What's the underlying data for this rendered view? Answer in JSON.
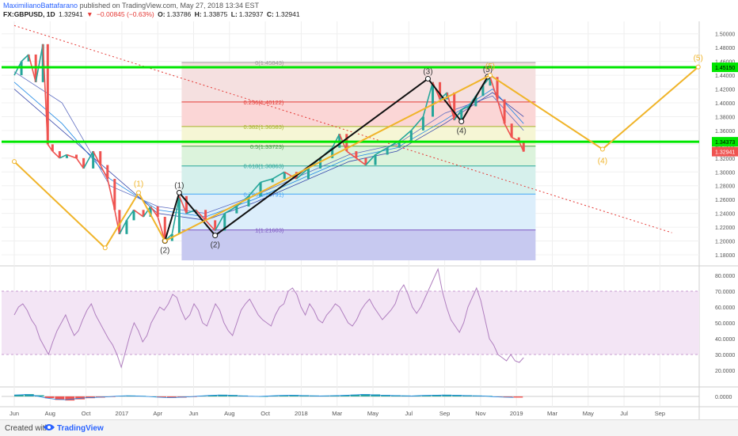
{
  "header": {
    "author": "MaximilianoBattafarano",
    "published": "published on TradingView.com, May 27, 2018 13:34 EST",
    "symbol": "FX:GBPUSD, 1D",
    "last": "1.32941",
    "change_arrow": "▼",
    "change": "−0.00845 (−0.63%)",
    "o_label": "O:",
    "o_val": "1.33786",
    "h_label": "H:",
    "h_val": "1.33875",
    "l_label": "L:",
    "l_val": "1.32937",
    "c_label": "C:",
    "c_val": "1.32941"
  },
  "footer": {
    "created": "Created with",
    "brand": "TradingView"
  },
  "colors": {
    "bull": "#26a69a",
    "bear": "#ef5350",
    "green_level": "#00e600",
    "wave_yellow": "#f0b429",
    "wave_black": "#111111",
    "trend_red": "#e53935",
    "rsi_line": "#b07fbf",
    "rsi_band": "#f3e5f5"
  },
  "chart_data": {
    "type": "line",
    "symbol": "FX:GBPUSD",
    "interval": "1D",
    "x_ticks": [
      "Jun",
      "Aug",
      "Oct",
      "2017",
      "Apr",
      "Jun",
      "Aug",
      "Oct",
      "2018",
      "Mar",
      "May",
      "Jul",
      "Sep",
      "Nov",
      "2019",
      "Mar",
      "May",
      "Jul",
      "Sep"
    ],
    "price_axis": {
      "ylim": [
        1.172,
        1.518
      ],
      "ticks": [
        1.18,
        1.2,
        1.22,
        1.24,
        1.26,
        1.28,
        1.3,
        1.32,
        1.34,
        1.36,
        1.38,
        1.4,
        1.42,
        1.44,
        1.46,
        1.48,
        1.5
      ],
      "tick_labels": [
        "1.18000",
        "1.20000",
        "1.22000",
        "1.24000",
        "1.26000",
        "1.28000",
        "1.30000",
        "1.32000",
        "1.34000",
        "1.36000",
        "1.38000",
        "1.40000",
        "1.42000",
        "1.44000",
        "1.46000",
        "1.48000",
        "1.50000"
      ],
      "badges": [
        {
          "value": 1.4515,
          "label": "1.45150",
          "color": "#00e600"
        },
        {
          "value": 1.3437,
          "label": "1.34373",
          "color": "#00e600"
        },
        {
          "value": 1.3294,
          "label": "1.32941",
          "color": "#ef5350"
        }
      ]
    },
    "price_series": [
      {
        "m": 0,
        "p": 1.44
      },
      {
        "m": 0.3,
        "p": 1.46
      },
      {
        "m": 0.6,
        "p": 1.47
      },
      {
        "m": 0.9,
        "p": 1.43
      },
      {
        "m": 1.2,
        "p": 1.485
      },
      {
        "m": 1.4,
        "p": 1.34
      },
      {
        "m": 1.6,
        "p": 1.33
      },
      {
        "m": 1.9,
        "p": 1.32
      },
      {
        "m": 2.2,
        "p": 1.325
      },
      {
        "m": 2.6,
        "p": 1.32
      },
      {
        "m": 2.9,
        "p": 1.305
      },
      {
        "m": 3.3,
        "p": 1.33
      },
      {
        "m": 3.6,
        "p": 1.31
      },
      {
        "m": 3.9,
        "p": 1.29
      },
      {
        "m": 4.2,
        "p": 1.245
      },
      {
        "m": 4.4,
        "p": 1.21
      },
      {
        "m": 4.7,
        "p": 1.23
      },
      {
        "m": 5.0,
        "p": 1.245
      },
      {
        "m": 5.4,
        "p": 1.235
      },
      {
        "m": 5.7,
        "p": 1.25
      },
      {
        "m": 6.0,
        "p": 1.235
      },
      {
        "m": 6.3,
        "p": 1.2
      },
      {
        "m": 6.6,
        "p": 1.21
      },
      {
        "m": 6.9,
        "p": 1.265
      },
      {
        "m": 7.2,
        "p": 1.24
      },
      {
        "m": 7.6,
        "p": 1.245
      },
      {
        "m": 8.0,
        "p": 1.23
      },
      {
        "m": 8.4,
        "p": 1.215
      },
      {
        "m": 8.8,
        "p": 1.24
      },
      {
        "m": 9.3,
        "p": 1.25
      },
      {
        "m": 9.8,
        "p": 1.265
      },
      {
        "m": 10.3,
        "p": 1.285
      },
      {
        "m": 10.8,
        "p": 1.29
      },
      {
        "m": 11.3,
        "p": 1.3
      },
      {
        "m": 11.8,
        "p": 1.29
      },
      {
        "m": 12.3,
        "p": 1.305
      },
      {
        "m": 12.8,
        "p": 1.32
      },
      {
        "m": 13.3,
        "p": 1.335
      },
      {
        "m": 13.6,
        "p": 1.355
      },
      {
        "m": 13.9,
        "p": 1.33
      },
      {
        "m": 14.3,
        "p": 1.32
      },
      {
        "m": 14.7,
        "p": 1.31
      },
      {
        "m": 15.1,
        "p": 1.325
      },
      {
        "m": 15.6,
        "p": 1.335
      },
      {
        "m": 16.1,
        "p": 1.345
      },
      {
        "m": 16.6,
        "p": 1.36
      },
      {
        "m": 17.1,
        "p": 1.38
      },
      {
        "m": 17.5,
        "p": 1.43
      },
      {
        "m": 17.8,
        "p": 1.405
      },
      {
        "m": 18.1,
        "p": 1.415
      },
      {
        "m": 18.4,
        "p": 1.375
      },
      {
        "m": 18.7,
        "p": 1.39
      },
      {
        "m": 19.0,
        "p": 1.395
      },
      {
        "m": 19.3,
        "p": 1.41
      },
      {
        "m": 19.6,
        "p": 1.425
      },
      {
        "m": 19.9,
        "p": 1.4375
      },
      {
        "m": 20.2,
        "p": 1.405
      },
      {
        "m": 20.5,
        "p": 1.37
      },
      {
        "m": 20.8,
        "p": 1.35
      },
      {
        "m": 21.1,
        "p": 1.345
      },
      {
        "m": 21.3,
        "p": 1.3294
      }
    ],
    "ma_series": [
      [
        {
          "m": 0,
          "p": 1.445
        },
        {
          "m": 2,
          "p": 1.4
        },
        {
          "m": 4,
          "p": 1.28
        },
        {
          "m": 6,
          "p": 1.25
        },
        {
          "m": 8,
          "p": 1.24
        },
        {
          "m": 10,
          "p": 1.265
        },
        {
          "m": 12,
          "p": 1.295
        },
        {
          "m": 14,
          "p": 1.325
        },
        {
          "m": 16,
          "p": 1.34
        },
        {
          "m": 18,
          "p": 1.385
        },
        {
          "m": 20,
          "p": 1.41
        },
        {
          "m": 21.3,
          "p": 1.36
        }
      ],
      [
        {
          "m": 0,
          "p": 1.43
        },
        {
          "m": 2,
          "p": 1.37
        },
        {
          "m": 4,
          "p": 1.29
        },
        {
          "m": 6,
          "p": 1.245
        },
        {
          "m": 8,
          "p": 1.235
        },
        {
          "m": 10,
          "p": 1.26
        },
        {
          "m": 12,
          "p": 1.29
        },
        {
          "m": 14,
          "p": 1.32
        },
        {
          "m": 16,
          "p": 1.335
        },
        {
          "m": 18,
          "p": 1.375
        },
        {
          "m": 20,
          "p": 1.42
        },
        {
          "m": 21.3,
          "p": 1.37
        }
      ],
      [
        {
          "m": 0,
          "p": 1.42
        },
        {
          "m": 2,
          "p": 1.36
        },
        {
          "m": 4,
          "p": 1.3
        },
        {
          "m": 6,
          "p": 1.24
        },
        {
          "m": 8,
          "p": 1.23
        },
        {
          "m": 10,
          "p": 1.255
        },
        {
          "m": 12,
          "p": 1.285
        },
        {
          "m": 14,
          "p": 1.315
        },
        {
          "m": 16,
          "p": 1.33
        },
        {
          "m": 18,
          "p": 1.37
        },
        {
          "m": 20,
          "p": 1.415
        },
        {
          "m": 21.3,
          "p": 1.38
        }
      ]
    ],
    "fib_levels": [
      {
        "ratio": "0",
        "value": 1.45843,
        "label": "0(1.45843)",
        "color": "#9e9e9e",
        "fill": "#f5e0e0"
      },
      {
        "ratio": "0.236",
        "value": 1.40122,
        "label": "0.236(1.40122)",
        "color": "#e53935",
        "fill": "#fbd6d6"
      },
      {
        "ratio": "0.382",
        "value": 1.36583,
        "label": "0.382(1.36583)",
        "color": "#a6b42a",
        "fill": "#f6f6d5"
      },
      {
        "ratio": "0.5",
        "value": 1.33723,
        "label": "0.5(1.33723)",
        "color": "#43a047",
        "fill": "#dcf3dc"
      },
      {
        "ratio": "0.618",
        "value": 1.30863,
        "label": "0.618(1.30863)",
        "color": "#26a69a",
        "fill": "#d6f0ec"
      },
      {
        "ratio": "0.786",
        "value": 1.26791,
        "label": "0.786(1.26791)",
        "color": "#42a5f5",
        "fill": "#dceefb"
      },
      {
        "ratio": "1",
        "value": 1.21603,
        "label": "1(1.21603)",
        "color": "#7e57c2",
        "fill": "#e6e6e6"
      }
    ],
    "fib_bottom_fill": "#c7c9f0",
    "fib_box_months": [
      7.0,
      21.8
    ],
    "horizontal_levels": [
      1.4515,
      1.3437
    ],
    "trendline_red": [
      {
        "m": 0,
        "p": 1.512
      },
      {
        "m": 27.5,
        "p": 1.212
      }
    ],
    "waves_black": [
      {
        "m": 6.3,
        "p": 1.2,
        "label": "(2)"
      },
      {
        "m": 6.9,
        "p": 1.27,
        "label": "(1)"
      },
      {
        "m": 8.4,
        "p": 1.208,
        "label": "(2)"
      },
      {
        "m": 17.3,
        "p": 1.435,
        "label": "(3)"
      },
      {
        "m": 18.7,
        "p": 1.373,
        "label": "(4)"
      },
      {
        "m": 19.8,
        "p": 1.438,
        "label": "(5)"
      }
    ],
    "waves_yellow": [
      {
        "m": 0,
        "p": 1.315,
        "label": ""
      },
      {
        "m": 3.8,
        "p": 1.19,
        "label": ""
      },
      {
        "m": 5.2,
        "p": 1.27,
        "label": "(1)"
      },
      {
        "m": 6.3,
        "p": 1.2,
        "label": ""
      },
      {
        "m": 19.9,
        "p": 1.44,
        "label": "(5)"
      },
      {
        "m": 24.6,
        "p": 1.333,
        "label": "(4)"
      },
      {
        "m": 28.6,
        "p": 1.452,
        "label": "(5)"
      }
    ],
    "rsi": {
      "ylim": [
        10,
        85
      ],
      "ticks": [
        20,
        30,
        40,
        50,
        60,
        70,
        80
      ],
      "tick_labels": [
        "20.0000",
        "30.0000",
        "40.0000",
        "50.0000",
        "60.0000",
        "70.0000",
        "80.0000"
      ],
      "band": [
        30,
        70
      ],
      "values": [
        55,
        60,
        62,
        58,
        52,
        48,
        40,
        35,
        30,
        38,
        45,
        50,
        55,
        48,
        42,
        45,
        52,
        58,
        62,
        55,
        50,
        45,
        40,
        36,
        30,
        22,
        32,
        42,
        50,
        45,
        38,
        42,
        50,
        55,
        60,
        58,
        62,
        68,
        66,
        58,
        52,
        55,
        62,
        58,
        50,
        48,
        55,
        62,
        58,
        50,
        45,
        42,
        50,
        58,
        62,
        65,
        60,
        55,
        52,
        50,
        48,
        55,
        60,
        62,
        70,
        72,
        68,
        60,
        55,
        62,
        58,
        52,
        50,
        55,
        58,
        62,
        60,
        55,
        50,
        48,
        52,
        58,
        62,
        65,
        60,
        56,
        52,
        55,
        58,
        62,
        70,
        74,
        68,
        60,
        56,
        60,
        66,
        72,
        78,
        84,
        70,
        60,
        52,
        48,
        44,
        50,
        60,
        66,
        72,
        64,
        52,
        40,
        36,
        30,
        28,
        26,
        30,
        26,
        25,
        28
      ]
    },
    "macd": {
      "ylim": [
        -0.03,
        0.03
      ],
      "tick_labels": [
        "0.0000"
      ],
      "values": [
        0.006,
        0.008,
        0.004,
        -0.006,
        -0.012,
        -0.014,
        -0.01,
        -0.006,
        -0.004,
        -0.002,
        0.001,
        0.003,
        0.002,
        0,
        -0.003,
        -0.005,
        -0.004,
        -0.002,
        0.001,
        0.004,
        0.006,
        0.005,
        0.003,
        0.001,
        0,
        0.002,
        0.004,
        0.005,
        0.004,
        0.003,
        0.002,
        0.003,
        0.004,
        0.006,
        0.008,
        0.007,
        0.005,
        0.004,
        0.003,
        0.002,
        0.004,
        0.005,
        0.006,
        0.005,
        0.004,
        0.003,
        0.002,
        -0.001,
        -0.003,
        -0.004
      ]
    }
  }
}
